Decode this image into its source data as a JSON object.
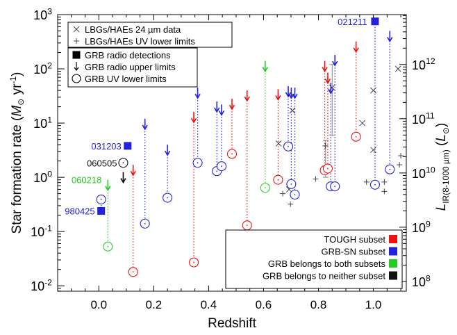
{
  "chart_data": {
    "type": "scatter",
    "title": "",
    "xlabel": "Redshift",
    "ylabel": "Star formation rate (M⊙ yr⁻¹)",
    "y2label": "L_IR(8-1000 µm) (L⊙)",
    "xlim": [
      -0.15,
      1.12
    ],
    "ylim_log10": [
      -2.1,
      3.0
    ],
    "x_ticks": [
      "0.0",
      "0.2",
      "0.4",
      "0.6",
      "0.8",
      "1.0"
    ],
    "y_ticks": [
      {
        "exp": -2,
        "label": "10",
        "sup": "-2"
      },
      {
        "exp": -1,
        "label": "10",
        "sup": "-1"
      },
      {
        "exp": 0,
        "label": "10",
        "sup": "0"
      },
      {
        "exp": 1,
        "label": "10",
        "sup": "1"
      },
      {
        "exp": 2,
        "label": "10",
        "sup": "2"
      },
      {
        "exp": 3,
        "label": "10",
        "sup": "3"
      }
    ],
    "y2_ticks": [
      {
        "sfr_log10": -1.92,
        "label": "10",
        "sup": "8"
      },
      {
        "sfr_log10": -0.92,
        "label": "10",
        "sup": "9"
      },
      {
        "sfr_log10": 0.08,
        "label": "10",
        "sup": "10"
      },
      {
        "sfr_log10": 1.08,
        "label": "10",
        "sup": "11"
      },
      {
        "sfr_log10": 2.08,
        "label": "10",
        "sup": "12"
      }
    ],
    "colors": {
      "tough": "#ee1111",
      "sn": "#2222dd",
      "both": "#22cc22",
      "neither": "#111111"
    },
    "legend_top": {
      "placement": "top-left",
      "entries": [
        {
          "symbol": "x",
          "label": "LBGs/HAEs 24 µm data"
        },
        {
          "symbol": "plus",
          "label": "LBGs/HAEs UV lower limits"
        }
      ]
    },
    "legend_grb": {
      "placement": "upper-left",
      "entries": [
        {
          "symbol": "square",
          "label": "GRB radio detections"
        },
        {
          "symbol": "arrow",
          "label": "GRB radio upper limits"
        },
        {
          "symbol": "circle",
          "label": "GRB UV lower limits"
        }
      ]
    },
    "legend_subsets": {
      "placement": "bottom-right",
      "entries": [
        {
          "group": "tough",
          "label": "TOUGH subset"
        },
        {
          "group": "sn",
          "label": "GRB-SN subset"
        },
        {
          "group": "both",
          "label": "GRB belongs to both subsets"
        },
        {
          "group": "neither",
          "label": "GRB belongs to neither subset"
        }
      ]
    },
    "grb_labels": [
      {
        "text": "021211",
        "group": "sn",
        "x": 1.0,
        "y": 750
      },
      {
        "text": "031203",
        "group": "sn",
        "x": 0.105,
        "y": 3.8
      },
      {
        "text": "060505",
        "group": "neither",
        "x": 0.089,
        "y": 1.85
      },
      {
        "text": "060218",
        "group": "both",
        "x": 0.033,
        "y": 0.9
      },
      {
        "text": "980425",
        "group": "sn",
        "x": 0.0085,
        "y": 0.24
      }
    ],
    "grbs": [
      {
        "x": 0.0085,
        "group": "sn",
        "radio_detection": 0.24,
        "uv_lower": 0.39
      },
      {
        "x": 0.033,
        "group": "both",
        "upper_limit": 0.9,
        "uv_lower": 0.053
      },
      {
        "x": 0.089,
        "group": "neither",
        "upper_limit": 1.25,
        "uv_lower": 1.85
      },
      {
        "x": 0.105,
        "group": "sn",
        "radio_detection": 3.8
      },
      {
        "x": 0.125,
        "group": "tough",
        "upper_limit": 1.7,
        "uv_lower": 0.018
      },
      {
        "x": 0.168,
        "group": "sn",
        "upper_limit": 12,
        "uv_lower": 0.14
      },
      {
        "x": 0.25,
        "group": "sn",
        "upper_limit": 4,
        "uv_lower": 0.42
      },
      {
        "x": 0.346,
        "group": "tough",
        "upper_limit": 16,
        "uv_lower": 0.027
      },
      {
        "x": 0.36,
        "group": "sn",
        "upper_limit": 45,
        "uv_lower": 1.85
      },
      {
        "x": 0.43,
        "group": "sn",
        "upper_limit": 25,
        "uv_lower": 1.3
      },
      {
        "x": 0.447,
        "group": "sn",
        "upper_limit": 22,
        "uv_lower": 1.6
      },
      {
        "x": 0.485,
        "group": "tough",
        "upper_limit": 28,
        "uv_lower": 2.7
      },
      {
        "x": 0.54,
        "group": "tough",
        "upper_limit": 40,
        "uv_lower": 0.13
      },
      {
        "x": 0.606,
        "group": "both",
        "upper_limit": 140,
        "uv_lower": 0.64
      },
      {
        "x": 0.653,
        "group": "tough",
        "upper_limit": 42,
        "uv_lower": 0.9
      },
      {
        "x": 0.69,
        "group": "sn",
        "upper_limit": 48,
        "uv_lower": 3.7
      },
      {
        "x": 0.701,
        "group": "sn",
        "upper_limit": 45,
        "uv_lower": 0.75
      },
      {
        "x": 0.714,
        "group": "sn",
        "upper_limit": 45,
        "uv_lower": 0.48
      },
      {
        "x": 0.823,
        "group": "tough",
        "upper_limit": 140,
        "uv_lower": 1.35
      },
      {
        "x": 0.834,
        "group": "tough",
        "upper_limit": 85,
        "uv_lower": 1.45
      },
      {
        "x": 0.845,
        "group": "sn",
        "upper_limit": 55,
        "uv_lower": 0.68
      },
      {
        "x": 0.86,
        "group": "sn",
        "upper_limit": 180,
        "uv_lower": 0.68
      },
      {
        "x": 0.937,
        "group": "tough",
        "upper_limit": 320,
        "uv_lower": 5.6
      },
      {
        "x": 1.006,
        "group": "sn",
        "radio_detection": 750,
        "uv_lower": 0.73
      },
      {
        "x": 1.06,
        "group": "sn",
        "upper_limit": 500,
        "uv_lower": 1.4
      }
    ],
    "lbg_24um": [
      {
        "x": 0.655,
        "y": 4.2
      },
      {
        "x": 0.693,
        "y": 0.6
      },
      {
        "x": 0.705,
        "y": 17
      },
      {
        "x": 0.85,
        "y": 45
      },
      {
        "x": 0.96,
        "y": 10
      },
      {
        "x": 1.0,
        "y": 40
      },
      {
        "x": 1.0,
        "y": 3.2
      },
      {
        "x": 1.09,
        "y": 100
      }
    ],
    "lbg_uv_lower": [
      {
        "x": 0.67,
        "y": 0.5
      },
      {
        "x": 0.698,
        "y": 0.32
      },
      {
        "x": 0.79,
        "y": 0.93
      },
      {
        "x": 0.825,
        "y": 3.8
      },
      {
        "x": 0.975,
        "y": 0.82
      },
      {
        "x": 1.04,
        "y": 0.55
      },
      {
        "x": 1.04,
        "y": 0.82
      },
      {
        "x": 1.095,
        "y": 1.7
      },
      {
        "x": 1.1,
        "y": 2.5
      },
      {
        "x": 1.13,
        "y": 1.9
      }
    ],
    "error_bars": [
      {
        "x": 0.826,
        "y": 2.1,
        "lo": 1.0,
        "hi": 4.8
      },
      {
        "x": 0.85,
        "y": 40,
        "lo": 6,
        "hi": 120
      }
    ]
  }
}
